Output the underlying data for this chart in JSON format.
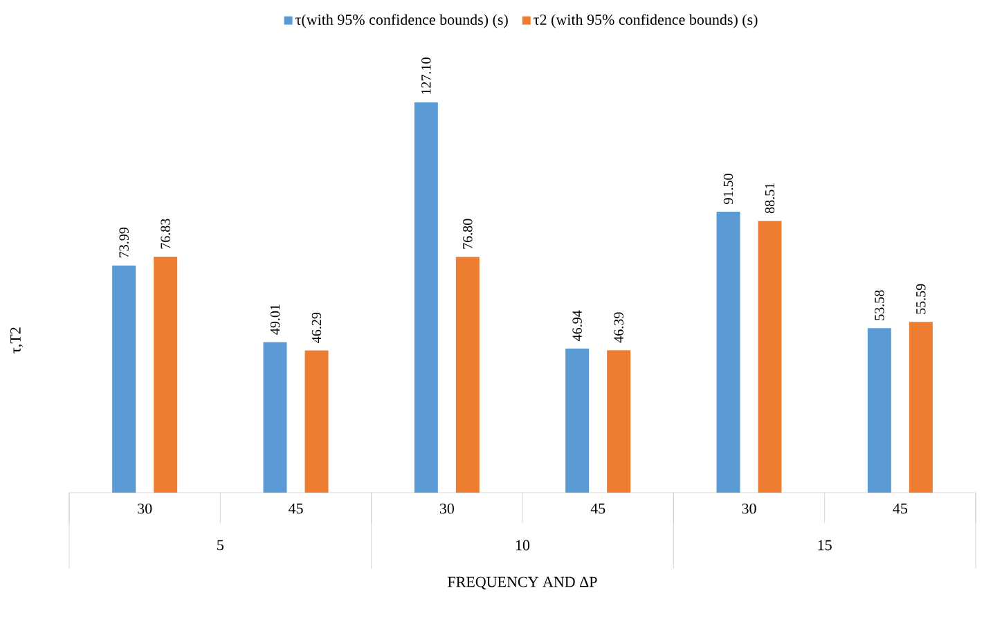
{
  "chart_data": {
    "type": "bar",
    "ylabel": "τ,T2",
    "xlabel": "FREQUENCY  AND ΔP",
    "categories": [
      "30",
      "45",
      "30",
      "45",
      "30",
      "45"
    ],
    "annotations": [
      "5",
      "10",
      "15"
    ],
    "series": [
      {
        "name": "τ(with 95% confidence bounds) (s)",
        "color": "#5b9bd5",
        "values": [
          73.99,
          49.01,
          127.1,
          46.94,
          91.5,
          53.58
        ],
        "value_labels": [
          "73.99",
          "49.01",
          "127.10",
          "46.94",
          "91.50",
          "53.58"
        ]
      },
      {
        "name": "τ2 (with 95% confidence bounds) (s)",
        "color": "#ed7d31",
        "values": [
          76.83,
          46.29,
          76.8,
          46.39,
          88.51,
          55.59
        ],
        "value_labels": [
          "76.83",
          "46.29",
          "76.80",
          "46.39",
          "88.51",
          "55.59"
        ]
      }
    ],
    "legend": "top",
    "grid": false
  }
}
